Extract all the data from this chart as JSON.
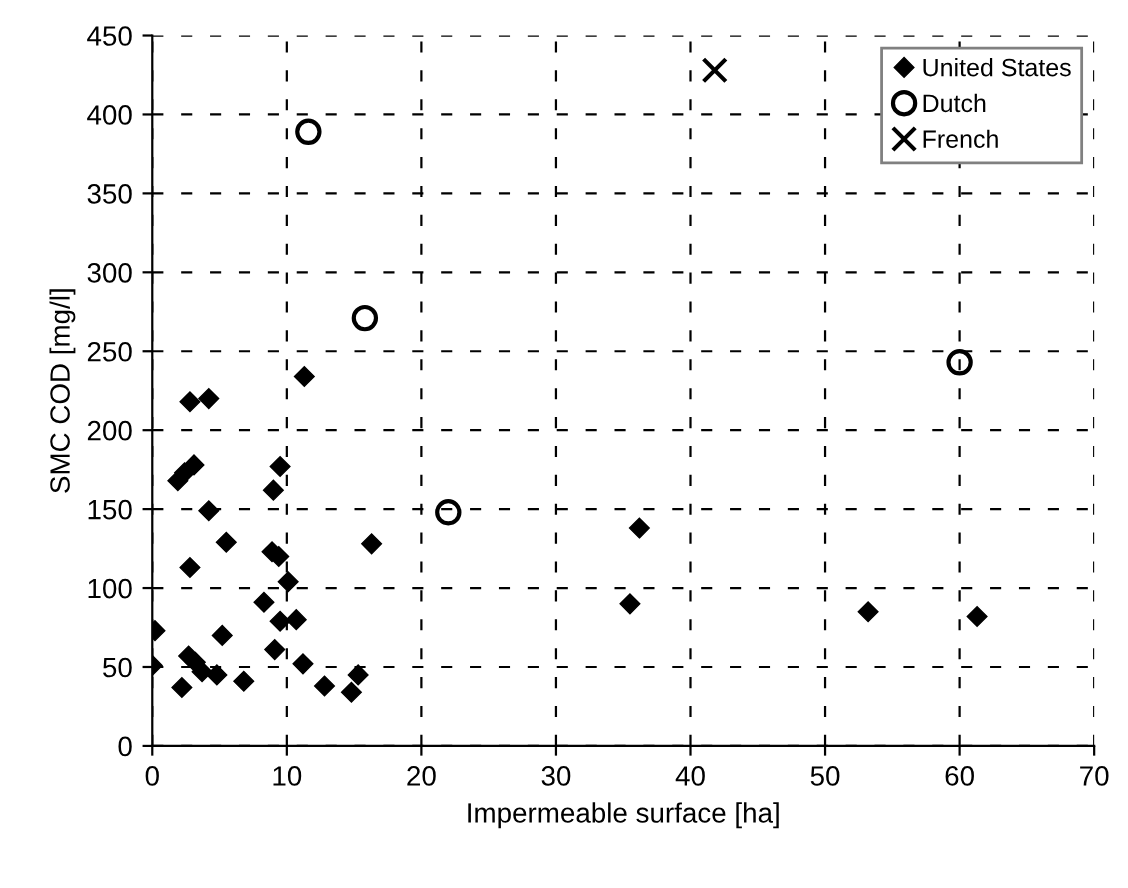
{
  "chart_data": {
    "type": "scatter",
    "xlabel": "Impermeable surface [ha]",
    "ylabel": "SMC COD [mg/l]",
    "xlim": [
      0,
      70
    ],
    "xticks": [
      0,
      10,
      20,
      30,
      40,
      50,
      60,
      70
    ],
    "ylim": [
      0,
      450
    ],
    "yticks": [
      0,
      50,
      100,
      150,
      200,
      250,
      300,
      350,
      400,
      450
    ],
    "grid": true,
    "legend": "top right",
    "series": [
      {
        "name": "United States",
        "color": "#000000",
        "marker": "diamond",
        "x": [
          11.3,
          2.8,
          4.2,
          3.1,
          2.4,
          1.9,
          9.5,
          9.0,
          4.2,
          5.5,
          16.3,
          8.9,
          9.4,
          2.8,
          10.1,
          8.3,
          9.5,
          10.7,
          0.2,
          5.2,
          9.1,
          0,
          2.7,
          3.2,
          3.7,
          4.8,
          2.2,
          6.8,
          11.2,
          12.8,
          15.3,
          14.8,
          35.5,
          36.2,
          53.2,
          61.3
        ],
        "values": [
          234,
          218,
          220,
          178,
          173,
          168,
          177,
          162,
          149,
          129,
          128,
          123,
          120,
          113,
          104,
          91,
          79,
          80,
          73,
          70,
          61,
          51,
          57,
          53,
          47,
          45,
          37,
          41,
          52,
          38,
          45,
          34,
          90,
          138,
          85,
          82
        ]
      },
      {
        "name": "Dutch",
        "color": "#000000",
        "marker": "circle",
        "x": [
          11.6,
          15.8,
          22,
          60
        ],
        "values": [
          389,
          271,
          148,
          243
        ]
      },
      {
        "name": "French",
        "color": "#000000",
        "marker": "cross",
        "x": [
          41.8
        ],
        "values": [
          428
        ]
      }
    ]
  }
}
